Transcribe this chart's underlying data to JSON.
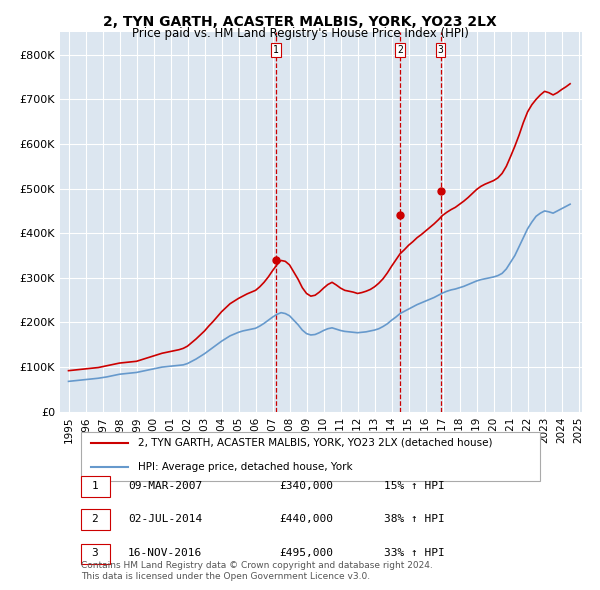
{
  "title": "2, TYN GARTH, ACASTER MALBIS, YORK, YO23 2LX",
  "subtitle": "Price paid vs. HM Land Registry's House Price Index (HPI)",
  "bg_color": "#dce6f0",
  "plot_bg_color": "#dce6f0",
  "red_color": "#cc0000",
  "blue_color": "#6699cc",
  "ylim": [
    0,
    850000
  ],
  "yticks": [
    0,
    100000,
    200000,
    300000,
    400000,
    500000,
    600000,
    700000,
    800000
  ],
  "ytick_labels": [
    "£0",
    "£100K",
    "£200K",
    "£300K",
    "£400K",
    "£500K",
    "£600K",
    "£700K",
    "£800K"
  ],
  "transactions": [
    {
      "date": "09-MAR-2007",
      "price": 340000,
      "pct": "15%",
      "label": "1",
      "year": 2007.19
    },
    {
      "date": "02-JUL-2014",
      "price": 440000,
      "pct": "38%",
      "label": "2",
      "year": 2014.5
    },
    {
      "date": "16-NOV-2016",
      "price": 495000,
      "pct": "33%",
      "label": "3",
      "year": 2016.88
    }
  ],
  "legend_line1": "2, TYN GARTH, ACASTER MALBIS, YORK, YO23 2LX (detached house)",
  "legend_line2": "HPI: Average price, detached house, York",
  "footer": "Contains HM Land Registry data © Crown copyright and database right 2024.\nThis data is licensed under the Open Government Licence v3.0.",
  "hpi_years": [
    1995,
    1995.25,
    1995.5,
    1995.75,
    1996,
    1996.25,
    1996.5,
    1996.75,
    1997,
    1997.25,
    1997.5,
    1997.75,
    1998,
    1998.25,
    1998.5,
    1998.75,
    1999,
    1999.25,
    1999.5,
    1999.75,
    2000,
    2000.25,
    2000.5,
    2000.75,
    2001,
    2001.25,
    2001.5,
    2001.75,
    2002,
    2002.25,
    2002.5,
    2002.75,
    2003,
    2003.25,
    2003.5,
    2003.75,
    2004,
    2004.25,
    2004.5,
    2004.75,
    2005,
    2005.25,
    2005.5,
    2005.75,
    2006,
    2006.25,
    2006.5,
    2006.75,
    2007,
    2007.25,
    2007.5,
    2007.75,
    2008,
    2008.25,
    2008.5,
    2008.75,
    2009,
    2009.25,
    2009.5,
    2009.75,
    2010,
    2010.25,
    2010.5,
    2010.75,
    2011,
    2011.25,
    2011.5,
    2011.75,
    2012,
    2012.25,
    2012.5,
    2012.75,
    2013,
    2013.25,
    2013.5,
    2013.75,
    2014,
    2014.25,
    2014.5,
    2014.75,
    2015,
    2015.25,
    2015.5,
    2015.75,
    2016,
    2016.25,
    2016.5,
    2016.75,
    2017,
    2017.25,
    2017.5,
    2017.75,
    2018,
    2018.25,
    2018.5,
    2018.75,
    2019,
    2019.25,
    2019.5,
    2019.75,
    2020,
    2020.25,
    2020.5,
    2020.75,
    2021,
    2021.25,
    2021.5,
    2021.75,
    2022,
    2022.25,
    2022.5,
    2022.75,
    2023,
    2023.25,
    2023.5,
    2023.75,
    2024,
    2024.25,
    2024.5
  ],
  "hpi_values": [
    68000,
    69000,
    70000,
    71000,
    72000,
    73000,
    74000,
    75000,
    76500,
    78000,
    80000,
    82000,
    84000,
    85000,
    86000,
    87000,
    88000,
    90000,
    92000,
    94000,
    96000,
    98000,
    100000,
    101000,
    102000,
    103000,
    104000,
    105000,
    108000,
    113000,
    118000,
    124000,
    130000,
    137000,
    144000,
    151000,
    158000,
    164000,
    170000,
    174000,
    178000,
    181000,
    183000,
    185000,
    187000,
    192000,
    198000,
    205000,
    212000,
    218000,
    222000,
    220000,
    215000,
    205000,
    195000,
    183000,
    175000,
    172000,
    173000,
    177000,
    182000,
    186000,
    188000,
    185000,
    182000,
    180000,
    179000,
    178000,
    177000,
    178000,
    179000,
    181000,
    183000,
    186000,
    191000,
    197000,
    205000,
    212000,
    220000,
    225000,
    230000,
    235000,
    240000,
    244000,
    248000,
    252000,
    256000,
    261000,
    266000,
    270000,
    273000,
    275000,
    278000,
    281000,
    285000,
    289000,
    293000,
    296000,
    298000,
    300000,
    302000,
    305000,
    310000,
    320000,
    335000,
    350000,
    370000,
    390000,
    410000,
    425000,
    438000,
    445000,
    450000,
    448000,
    445000,
    450000,
    455000,
    460000,
    465000
  ],
  "red_years": [
    1995,
    1995.25,
    1995.5,
    1995.75,
    1996,
    1996.25,
    1996.5,
    1996.75,
    1997,
    1997.25,
    1997.5,
    1997.75,
    1998,
    1998.25,
    1998.5,
    1998.75,
    1999,
    1999.25,
    1999.5,
    1999.75,
    2000,
    2000.25,
    2000.5,
    2000.75,
    2001,
    2001.25,
    2001.5,
    2001.75,
    2002,
    2002.25,
    2002.5,
    2002.75,
    2003,
    2003.25,
    2003.5,
    2003.75,
    2004,
    2004.25,
    2004.5,
    2004.75,
    2005,
    2005.25,
    2005.5,
    2005.75,
    2006,
    2006.25,
    2006.5,
    2006.75,
    2007,
    2007.25,
    2007.5,
    2007.75,
    2008,
    2008.25,
    2008.5,
    2008.75,
    2009,
    2009.25,
    2009.5,
    2009.75,
    2010,
    2010.25,
    2010.5,
    2010.75,
    2011,
    2011.25,
    2011.5,
    2011.75,
    2012,
    2012.25,
    2012.5,
    2012.75,
    2013,
    2013.25,
    2013.5,
    2013.75,
    2014,
    2014.25,
    2014.5,
    2014.75,
    2015,
    2015.25,
    2015.5,
    2015.75,
    2016,
    2016.25,
    2016.5,
    2016.75,
    2017,
    2017.25,
    2017.5,
    2017.75,
    2018,
    2018.25,
    2018.5,
    2018.75,
    2019,
    2019.25,
    2019.5,
    2019.75,
    2020,
    2020.25,
    2020.5,
    2020.75,
    2021,
    2021.25,
    2021.5,
    2021.75,
    2022,
    2022.25,
    2022.5,
    2022.75,
    2023,
    2023.25,
    2023.5,
    2023.75,
    2024,
    2024.25,
    2024.5
  ],
  "red_values": [
    92000,
    93000,
    94000,
    95000,
    96000,
    97000,
    98000,
    99000,
    101000,
    103000,
    105000,
    107000,
    109000,
    110000,
    111000,
    112000,
    113000,
    116000,
    119000,
    122000,
    125000,
    128000,
    131000,
    133000,
    135000,
    137000,
    139000,
    142000,
    147000,
    155000,
    163000,
    172000,
    181000,
    192000,
    202000,
    213000,
    224000,
    233000,
    242000,
    248000,
    254000,
    259000,
    264000,
    268000,
    272000,
    280000,
    290000,
    302000,
    316000,
    329000,
    339000,
    337000,
    329000,
    313000,
    297000,
    278000,
    265000,
    259000,
    261000,
    268000,
    277000,
    285000,
    290000,
    284000,
    277000,
    272000,
    270000,
    268000,
    265000,
    267000,
    270000,
    274000,
    280000,
    288000,
    298000,
    311000,
    326000,
    340000,
    354000,
    363000,
    373000,
    381000,
    390000,
    397000,
    405000,
    413000,
    421000,
    430000,
    440000,
    447000,
    453000,
    458000,
    465000,
    472000,
    480000,
    489000,
    498000,
    505000,
    510000,
    514000,
    518000,
    524000,
    534000,
    550000,
    572000,
    595000,
    620000,
    648000,
    672000,
    688000,
    700000,
    710000,
    718000,
    715000,
    710000,
    715000,
    722000,
    728000,
    735000
  ]
}
